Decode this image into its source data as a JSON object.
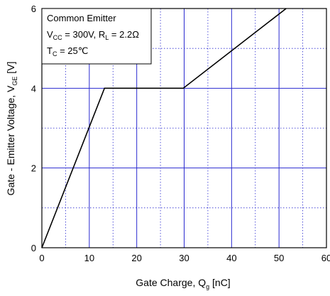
{
  "chart_data": {
    "type": "line",
    "xlabel": {
      "main": "Gate Charge, Q",
      "sub": "g",
      "unit": " [nC]"
    },
    "ylabel": {
      "main": "Gate - Emitter Voltage, V",
      "sub": "GE",
      "unit": " [V]"
    },
    "xlim": [
      0,
      60
    ],
    "ylim": [
      0,
      6
    ],
    "x_ticks": [
      "0",
      "10",
      "20",
      "30",
      "40",
      "50",
      "60"
    ],
    "y_ticks": [
      "0",
      "2",
      "4",
      "6"
    ],
    "grid": true,
    "grid_major_color": "#2a2ad0",
    "grid_minor_color": "#2a2ad0",
    "series": [
      {
        "color": "#000000",
        "points": [
          [
            0,
            0
          ],
          [
            13.2,
            4.0
          ],
          [
            29.8,
            4.0
          ],
          [
            51.5,
            6.0
          ]
        ]
      }
    ],
    "annotation": {
      "line1": "Common Emitter",
      "line2_a": "V",
      "line2_a_sub": "CC",
      "line2_b": " = 300V, R",
      "line2_b_sub": "L",
      "line2_c": " = 2.2Ω",
      "line3_a": "T",
      "line3_a_sub": "C",
      "line3_b": " = 25℃"
    }
  }
}
